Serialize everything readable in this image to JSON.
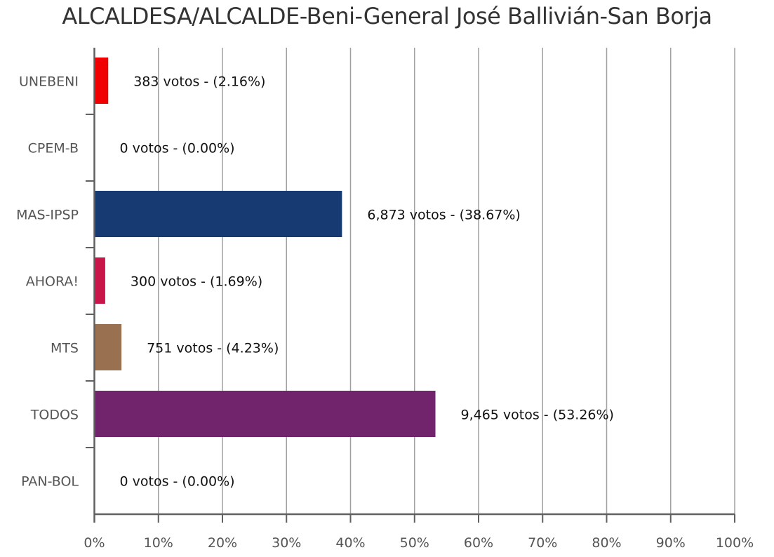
{
  "chart_data": {
    "type": "bar",
    "orientation": "horizontal",
    "title": "ALCALDESA/ALCALDE-Beni-General José Ballivián-San Borja",
    "categories": [
      "UNEBENI",
      "CPEM-B",
      "MAS-IPSP",
      "AHORA!",
      "MTS",
      "TODOS",
      "PAN-BOL"
    ],
    "values": [
      2.16,
      0.0,
      38.67,
      1.69,
      4.23,
      53.26,
      0.0
    ],
    "votes": [
      383,
      0,
      6873,
      300,
      751,
      9465,
      0
    ],
    "data_labels": [
      "383 votos - (2.16%)",
      "0 votos - (0.00%)",
      "6,873 votos - (38.67%)",
      "300 votos - (1.69%)",
      "751 votos - (4.23%)",
      "9,465 votos - (53.26%)",
      "0 votos - (0.00%)"
    ],
    "colors": [
      "#f00000",
      "#cccccc",
      "#173a72",
      "#c8164b",
      "#9a7150",
      "#71236c",
      "#cccccc"
    ],
    "xlim": [
      0,
      100
    ],
    "xticks": [
      "0%",
      "10%",
      "20%",
      "30%",
      "40%",
      "50%",
      "60%",
      "70%",
      "80%",
      "90%",
      "100%"
    ],
    "grid": "vertical",
    "legend": "none"
  }
}
